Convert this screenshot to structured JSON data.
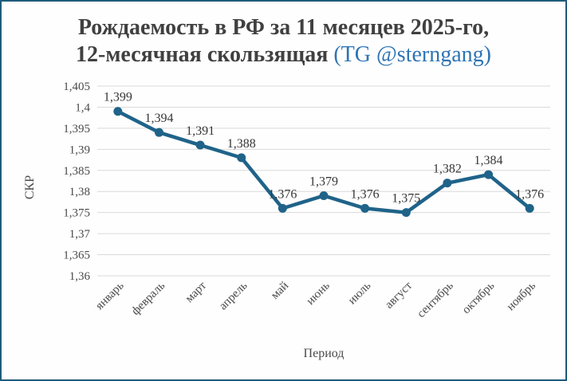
{
  "page": {
    "border_color": "#1e5b7c",
    "background_color": "#fefefe"
  },
  "header": {
    "title_line1": "Рождаемость в РФ за 11 месяцев 2025-го,",
    "title_line2": "12-месячная скользящая",
    "title_suffix": "(TG @sterngang)",
    "title_color": "#404040",
    "suffix_color": "#2e74b5"
  },
  "chart_data": {
    "type": "line",
    "title": "Рождаемость в РФ за 11 месяцев 2025-го, 12-месячная скользящая (TG @sterngang)",
    "xlabel": "Период",
    "ylabel": "СКР",
    "categories": [
      "январь",
      "февраль",
      "март",
      "апрель",
      "май",
      "июнь",
      "июль",
      "август",
      "сентябрь",
      "октябрь",
      "ноябрь"
    ],
    "values": [
      1.399,
      1.394,
      1.391,
      1.388,
      1.376,
      1.379,
      1.376,
      1.375,
      1.382,
      1.384,
      1.376
    ],
    "data_labels": [
      "1,399",
      "1,394",
      "1,391",
      "1,388",
      "1,376",
      "1,379",
      "1,376",
      "1,375",
      "1,382",
      "1,384",
      "1,376"
    ],
    "ylim": [
      1.36,
      1.405
    ],
    "ytick_step": 0.005,
    "ytick_labels": [
      "1,36",
      "1,365",
      "1,37",
      "1,375",
      "1,38",
      "1,385",
      "1,39",
      "1,395",
      "1,4",
      "1,405"
    ],
    "grid": true,
    "legend": "none",
    "line_color": "#1f6389",
    "gridline_color": "#d9d9d9",
    "tick_color": "#4a4a4a",
    "label_color": "#363636"
  }
}
